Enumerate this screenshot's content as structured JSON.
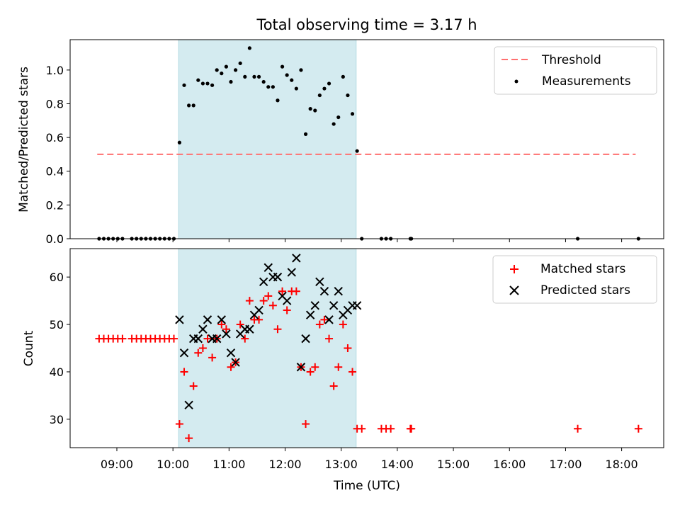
{
  "chart_data": [
    {
      "type": "scatter",
      "title": "Total observing time = 3.17 h",
      "xlabel": "",
      "ylabel": "Matched/Predicted stars",
      "xlim": [
        "08:10",
        "18:45"
      ],
      "ylim": [
        0,
        1.18
      ],
      "yticks": [
        "0.0",
        "0.2",
        "0.4",
        "0.6",
        "0.8",
        "1.0"
      ],
      "ytick_values": [
        0,
        0.2,
        0.4,
        0.6,
        0.8,
        1.0
      ],
      "shaded_span": [
        "10:06",
        "13:16"
      ],
      "shaded_color": "#d4ebf0",
      "legend_position": "upper right",
      "legend": [
        {
          "label": "Threshold",
          "style": "dashed-line",
          "color": "#ff7070"
        },
        {
          "label": "Measurements",
          "style": "dot",
          "color": "#000000"
        }
      ],
      "threshold": {
        "value": 0.5,
        "x_start": "08:39",
        "x_end": "18:15"
      },
      "series": [
        {
          "name": "Measurements",
          "marker": "dot",
          "color": "#000000",
          "points": [
            [
              "08:41",
              0
            ],
            [
              "08:46",
              0
            ],
            [
              "08:51",
              0
            ],
            [
              "08:56",
              0
            ],
            [
              "09:01",
              0
            ],
            [
              "09:06",
              0
            ],
            [
              "09:16",
              0
            ],
            [
              "09:21",
              0
            ],
            [
              "09:26",
              0
            ],
            [
              "09:31",
              0
            ],
            [
              "09:36",
              0
            ],
            [
              "09:41",
              0
            ],
            [
              "09:46",
              0
            ],
            [
              "09:51",
              0
            ],
            [
              "09:56",
              0
            ],
            [
              "10:01",
              0
            ],
            [
              "10:07",
              0.57
            ],
            [
              "10:12",
              0.91
            ],
            [
              "10:17",
              0.79
            ],
            [
              "10:22",
              0.79
            ],
            [
              "10:27",
              0.94
            ],
            [
              "10:32",
              0.92
            ],
            [
              "10:37",
              0.92
            ],
            [
              "10:42",
              0.91
            ],
            [
              "10:47",
              1.0
            ],
            [
              "10:52",
              0.98
            ],
            [
              "10:57",
              1.02
            ],
            [
              "11:02",
              0.93
            ],
            [
              "11:07",
              1.0
            ],
            [
              "11:12",
              1.04
            ],
            [
              "11:17",
              0.96
            ],
            [
              "11:22",
              1.13
            ],
            [
              "11:27",
              0.96
            ],
            [
              "11:32",
              0.96
            ],
            [
              "11:37",
              0.93
            ],
            [
              "11:42",
              0.9
            ],
            [
              "11:47",
              0.9
            ],
            [
              "11:52",
              0.82
            ],
            [
              "11:57",
              1.02
            ],
            [
              "12:02",
              0.97
            ],
            [
              "12:07",
              0.94
            ],
            [
              "12:12",
              0.89
            ],
            [
              "12:17",
              1.0
            ],
            [
              "12:22",
              0.62
            ],
            [
              "12:27",
              0.77
            ],
            [
              "12:32",
              0.76
            ],
            [
              "12:37",
              0.85
            ],
            [
              "12:42",
              0.89
            ],
            [
              "12:47",
              0.92
            ],
            [
              "12:52",
              0.68
            ],
            [
              "12:57",
              0.72
            ],
            [
              "13:02",
              0.96
            ],
            [
              "13:07",
              0.85
            ],
            [
              "13:12",
              0.74
            ],
            [
              "13:17",
              0.52
            ],
            [
              "13:22",
              0
            ],
            [
              "13:43",
              0
            ],
            [
              "13:48",
              0
            ],
            [
              "13:53",
              0
            ],
            [
              "14:14",
              0
            ],
            [
              "14:15",
              0
            ],
            [
              "17:13",
              0
            ],
            [
              "18:18",
              0
            ]
          ]
        }
      ]
    },
    {
      "type": "scatter",
      "title": "",
      "xlabel": "Time (UTC)",
      "ylabel": "Count",
      "xlim": [
        "08:10",
        "18:45"
      ],
      "xticks": [
        "09:00",
        "10:00",
        "11:00",
        "12:00",
        "13:00",
        "14:00",
        "15:00",
        "16:00",
        "17:00",
        "18:00"
      ],
      "ylim": [
        24,
        66
      ],
      "yticks": [
        "30",
        "40",
        "50",
        "60"
      ],
      "ytick_values": [
        30,
        40,
        50,
        60
      ],
      "shaded_span": [
        "10:06",
        "13:16"
      ],
      "shaded_color": "#d4ebf0",
      "legend_position": "upper right",
      "legend": [
        {
          "label": "Matched stars",
          "style": "plus",
          "color": "#ff0000"
        },
        {
          "label": "Predicted stars",
          "style": "cross",
          "color": "#000000"
        }
      ],
      "series": [
        {
          "name": "Matched stars",
          "marker": "plus",
          "color": "#ff0000",
          "points": [
            [
              "08:41",
              47
            ],
            [
              "08:46",
              47
            ],
            [
              "08:51",
              47
            ],
            [
              "08:56",
              47
            ],
            [
              "09:01",
              47
            ],
            [
              "09:06",
              47
            ],
            [
              "09:16",
              47
            ],
            [
              "09:21",
              47
            ],
            [
              "09:26",
              47
            ],
            [
              "09:31",
              47
            ],
            [
              "09:36",
              47
            ],
            [
              "09:41",
              47
            ],
            [
              "09:46",
              47
            ],
            [
              "09:51",
              47
            ],
            [
              "09:56",
              47
            ],
            [
              "10:01",
              47
            ],
            [
              "10:07",
              29
            ],
            [
              "10:12",
              40
            ],
            [
              "10:17",
              26
            ],
            [
              "10:22",
              37
            ],
            [
              "10:27",
              44
            ],
            [
              "10:32",
              45
            ],
            [
              "10:37",
              47
            ],
            [
              "10:42",
              43
            ],
            [
              "10:47",
              47
            ],
            [
              "10:52",
              50
            ],
            [
              "10:57",
              49
            ],
            [
              "11:02",
              41
            ],
            [
              "11:07",
              42
            ],
            [
              "11:12",
              50
            ],
            [
              "11:17",
              47
            ],
            [
              "11:22",
              55
            ],
            [
              "11:27",
              51
            ],
            [
              "11:32",
              51
            ],
            [
              "11:37",
              55
            ],
            [
              "11:42",
              56
            ],
            [
              "11:47",
              54
            ],
            [
              "11:52",
              49
            ],
            [
              "11:57",
              57
            ],
            [
              "12:02",
              53
            ],
            [
              "12:07",
              57
            ],
            [
              "12:12",
              57
            ],
            [
              "12:17",
              41
            ],
            [
              "12:22",
              29
            ],
            [
              "12:27",
              40
            ],
            [
              "12:32",
              41
            ],
            [
              "12:37",
              50
            ],
            [
              "12:42",
              51
            ],
            [
              "12:47",
              47
            ],
            [
              "12:52",
              37
            ],
            [
              "12:57",
              41
            ],
            [
              "13:02",
              50
            ],
            [
              "13:07",
              45
            ],
            [
              "13:12",
              40
            ],
            [
              "13:17",
              28
            ],
            [
              "13:22",
              28
            ],
            [
              "13:43",
              28
            ],
            [
              "13:48",
              28
            ],
            [
              "13:53",
              28
            ],
            [
              "14:14",
              28
            ],
            [
              "14:15",
              28
            ],
            [
              "17:13",
              28
            ],
            [
              "18:18",
              28
            ]
          ]
        },
        {
          "name": "Predicted stars",
          "marker": "cross",
          "color": "#000000",
          "points": [
            [
              "10:07",
              51
            ],
            [
              "10:12",
              44
            ],
            [
              "10:17",
              33
            ],
            [
              "10:22",
              47
            ],
            [
              "10:27",
              47
            ],
            [
              "10:32",
              49
            ],
            [
              "10:37",
              51
            ],
            [
              "10:42",
              47
            ],
            [
              "10:47",
              47
            ],
            [
              "10:52",
              51
            ],
            [
              "10:57",
              48
            ],
            [
              "11:02",
              44
            ],
            [
              "11:07",
              42
            ],
            [
              "11:12",
              48
            ],
            [
              "11:17",
              49
            ],
            [
              "11:22",
              49
            ],
            [
              "11:27",
              52
            ],
            [
              "11:32",
              53
            ],
            [
              "11:37",
              59
            ],
            [
              "11:42",
              62
            ],
            [
              "11:47",
              60
            ],
            [
              "11:52",
              60
            ],
            [
              "11:57",
              56
            ],
            [
              "12:02",
              55
            ],
            [
              "12:07",
              61
            ],
            [
              "12:12",
              64
            ],
            [
              "12:17",
              41
            ],
            [
              "12:22",
              47
            ],
            [
              "12:27",
              52
            ],
            [
              "12:32",
              54
            ],
            [
              "12:37",
              59
            ],
            [
              "12:42",
              57
            ],
            [
              "12:47",
              51
            ],
            [
              "12:52",
              54
            ],
            [
              "12:57",
              57
            ],
            [
              "13:02",
              52
            ],
            [
              "13:07",
              53
            ],
            [
              "13:12",
              54
            ],
            [
              "13:17",
              54
            ]
          ]
        }
      ]
    }
  ]
}
